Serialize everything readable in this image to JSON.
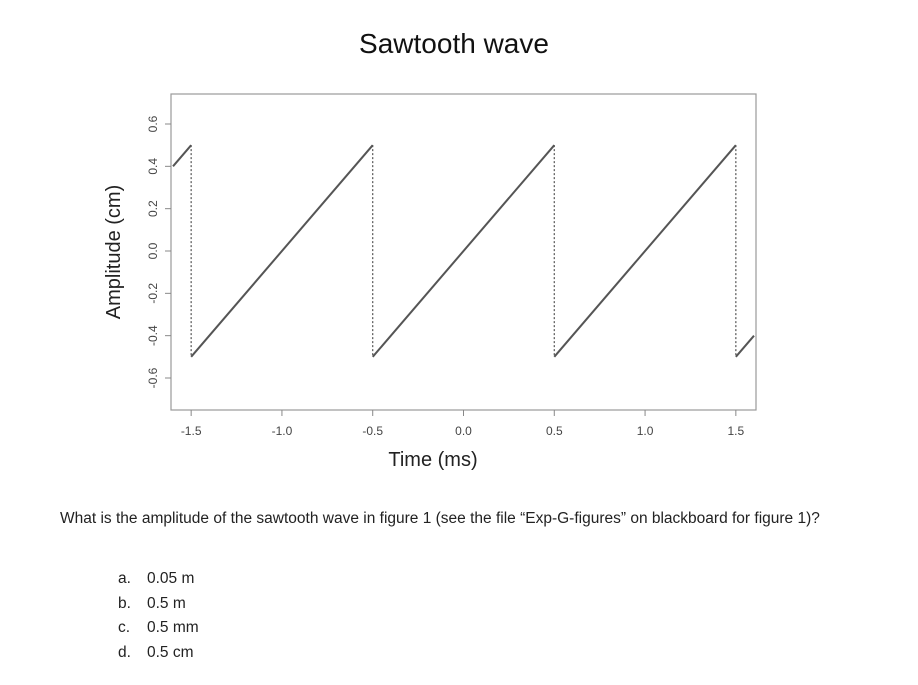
{
  "chart_data": {
    "type": "line",
    "title": "Sawtooth wave",
    "xlabel": "Time (ms)",
    "ylabel": "Amplitude (cm)",
    "xlim": [
      -1.6,
      1.6
    ],
    "ylim": [
      -0.6,
      0.6
    ],
    "x_ticks": [
      "-1.5",
      "-1.0",
      "-0.5",
      "0.0",
      "0.5",
      "1.0",
      "1.5"
    ],
    "y_ticks": [
      "-0.6",
      "-0.4",
      "-0.2",
      "0.0",
      "0.2",
      "0.4",
      "0.6"
    ],
    "series": [
      {
        "x": [
          -1.6,
          -1.5,
          -1.5,
          -0.5,
          -0.5,
          0.5,
          0.5,
          1.5,
          1.5,
          1.6
        ],
        "y": [
          0.4,
          0.5,
          -0.5,
          0.5,
          -0.5,
          0.5,
          -0.5,
          0.5,
          -0.5,
          -0.4
        ]
      }
    ],
    "discontinuity_style": "dotted",
    "grid": false,
    "line_color": "#555555"
  },
  "question": {
    "text": "What is the amplitude of the sawtooth wave in figure 1 (see the file “Exp-G-figures” on blackboard for figure 1)?",
    "options": [
      {
        "letter": "a.",
        "text": "0.05 m"
      },
      {
        "letter": "b.",
        "text": "0.5 m"
      },
      {
        "letter": "c.",
        "text": "0.5 mm"
      },
      {
        "letter": "d.",
        "text": "0.5 cm"
      }
    ]
  }
}
